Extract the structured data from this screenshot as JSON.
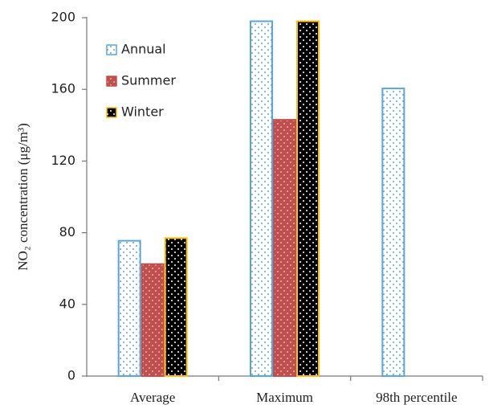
{
  "chart_data": {
    "type": "bar",
    "y_label": "NO₂ concentration (μg/m³)",
    "categories": [
      "Average",
      "Maximum",
      "98th percentile"
    ],
    "series": [
      {
        "name": "Annual",
        "color": "#ffffff",
        "edge": "#5aa6da",
        "dot": "#5aa6da",
        "values": [
          75.5,
          198,
          160.5
        ]
      },
      {
        "name": "Summer",
        "color": "#c0504d",
        "edge": "#c0504d",
        "dot": "#e8b0ae",
        "values": [
          62.5,
          143,
          null
        ]
      },
      {
        "name": "Winter",
        "color": "#000000",
        "edge": "#ffc000",
        "dot": "#ffffff",
        "values": [
          77,
          198,
          null
        ]
      }
    ],
    "ylim": [
      0,
      200
    ],
    "yticks": [
      0,
      40,
      80,
      120,
      160,
      200
    ]
  }
}
